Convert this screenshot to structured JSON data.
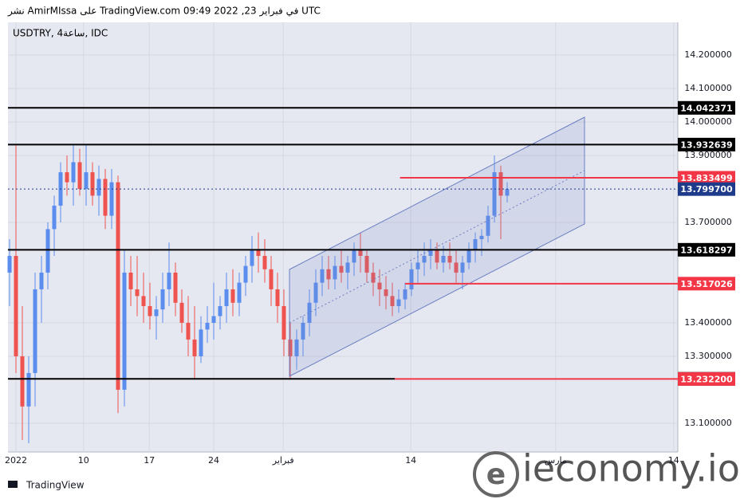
{
  "header": "نشر AmirMIssa على TradingView.com 09:49 2022 ,23 في فبراير UTC",
  "footer": "TradingView",
  "watermark": "ieconomy.io",
  "chart_data": {
    "type": "candlestick",
    "title": "USDTRY, 4ساعة, IDC",
    "up_color": "#5b8def",
    "down_color": "#ef5350",
    "xlim": [
      -0.25,
      104.75
    ],
    "ylim": [
      13.014,
      14.298
    ],
    "xticks": [
      {
        "value": 1,
        "label": "2022"
      },
      {
        "value": 11.6,
        "label": "10"
      },
      {
        "value": 21.9,
        "label": "17"
      },
      {
        "value": 32,
        "label": "24"
      },
      {
        "value": 42.9,
        "label": "فبراير"
      },
      {
        "value": 62.9,
        "label": "14"
      },
      {
        "value": 85.6,
        "label": "مارس"
      },
      {
        "value": 104.1,
        "label": "14"
      }
    ],
    "yticks": [
      {
        "value": 14.2,
        "label": "14.200000"
      },
      {
        "value": 14.1,
        "label": "14.100000"
      },
      {
        "value": 14.0,
        "label": "14.000000"
      },
      {
        "value": 13.9,
        "label": "13.900000"
      },
      {
        "value": 13.7,
        "label": "13.700000"
      },
      {
        "value": 13.4,
        "label": "13.400000"
      },
      {
        "value": 13.3,
        "label": "13.300000"
      },
      {
        "value": 13.1,
        "label": "13.100000"
      }
    ],
    "open": [
      13.55,
      13.6,
      13.3,
      13.15,
      13.25,
      13.5,
      13.55,
      13.68,
      13.75,
      13.85,
      13.82,
      13.88,
      13.8,
      13.85,
      13.78,
      13.83,
      13.72,
      13.82,
      13.2,
      13.55,
      13.5,
      13.48,
      13.45,
      13.42,
      13.44,
      13.5,
      13.55,
      13.46,
      13.4,
      13.35,
      13.3,
      13.38,
      13.4,
      13.42,
      13.45,
      13.5,
      13.46,
      13.52,
      13.57,
      13.62,
      13.6,
      13.56,
      13.5,
      13.45,
      13.35,
      13.3,
      13.35,
      13.4,
      13.46,
      13.52,
      13.56,
      13.53,
      13.57,
      13.55,
      13.58,
      13.62,
      13.6,
      13.55,
      13.52,
      13.5,
      13.48,
      13.45,
      13.47,
      13.5,
      13.56,
      13.58,
      13.6,
      13.62,
      13.58,
      13.6,
      13.58,
      13.55,
      13.58,
      13.62,
      13.65,
      13.66,
      13.72,
      13.85,
      13.78
    ],
    "high": [
      13.65,
      13.93,
      13.45,
      13.3,
      13.55,
      13.6,
      13.7,
      13.78,
      13.88,
      13.9,
      13.93,
      13.92,
      13.93,
      13.88,
      13.87,
      13.86,
      13.86,
      13.84,
      13.62,
      13.6,
      13.6,
      13.55,
      13.52,
      13.48,
      13.55,
      13.64,
      13.58,
      13.5,
      13.48,
      13.45,
      13.42,
      13.45,
      13.52,
      13.48,
      13.55,
      13.56,
      13.55,
      13.6,
      13.66,
      13.67,
      13.65,
      13.6,
      13.55,
      13.5,
      13.4,
      13.38,
      13.42,
      13.5,
      13.56,
      13.6,
      13.6,
      13.6,
      13.62,
      13.6,
      13.64,
      13.67,
      13.62,
      13.58,
      13.56,
      13.54,
      13.52,
      13.5,
      13.52,
      13.58,
      13.62,
      13.64,
      13.65,
      13.64,
      13.63,
      13.64,
      13.62,
      13.6,
      13.64,
      13.67,
      13.68,
      13.75,
      13.9,
      13.87,
      13.82
    ],
    "low": [
      13.45,
      13.25,
      13.05,
      13.04,
      13.15,
      13.4,
      13.5,
      13.6,
      13.7,
      13.78,
      13.75,
      13.78,
      13.75,
      13.75,
      13.72,
      13.68,
      13.68,
      13.13,
      13.15,
      13.45,
      13.42,
      13.4,
      13.38,
      13.35,
      13.4,
      13.45,
      13.42,
      13.37,
      13.3,
      13.23,
      13.28,
      13.34,
      13.35,
      13.38,
      13.4,
      13.42,
      13.42,
      13.48,
      13.52,
      13.55,
      13.52,
      13.45,
      13.4,
      13.3,
      13.23,
      13.26,
      13.3,
      13.36,
      13.42,
      13.48,
      13.5,
      13.5,
      13.52,
      13.5,
      13.54,
      13.55,
      13.52,
      13.48,
      13.45,
      13.44,
      13.42,
      13.43,
      13.44,
      13.48,
      13.52,
      13.54,
      13.56,
      13.56,
      13.55,
      13.56,
      13.52,
      13.5,
      13.56,
      13.58,
      13.6,
      13.64,
      13.7,
      13.65,
      13.76
    ],
    "close": [
      13.6,
      13.3,
      13.15,
      13.25,
      13.5,
      13.55,
      13.68,
      13.75,
      13.85,
      13.82,
      13.88,
      13.8,
      13.85,
      13.78,
      13.83,
      13.72,
      13.82,
      13.2,
      13.55,
      13.5,
      13.48,
      13.45,
      13.42,
      13.44,
      13.5,
      13.55,
      13.46,
      13.4,
      13.35,
      13.3,
      13.38,
      13.4,
      13.42,
      13.45,
      13.5,
      13.46,
      13.52,
      13.57,
      13.62,
      13.6,
      13.56,
      13.5,
      13.45,
      13.35,
      13.3,
      13.35,
      13.4,
      13.46,
      13.52,
      13.56,
      13.53,
      13.57,
      13.55,
      13.58,
      13.62,
      13.6,
      13.55,
      13.52,
      13.5,
      13.48,
      13.45,
      13.47,
      13.5,
      13.56,
      13.58,
      13.6,
      13.62,
      13.58,
      13.6,
      13.58,
      13.55,
      13.58,
      13.62,
      13.65,
      13.66,
      13.72,
      13.85,
      13.78,
      13.8
    ],
    "levels": [
      {
        "value": 14.042371,
        "color": "#000000"
      },
      {
        "value": 13.932639,
        "color": "#000000"
      },
      {
        "value": 13.833499,
        "color": "#f23645",
        "x_start": 61.2
      },
      {
        "value": 13.618297,
        "color": "#000000"
      },
      {
        "value": 13.517026,
        "color": "#f23645",
        "x_start": 62
      },
      {
        "value": 13.232648,
        "color": "#000000",
        "x_end": 60.4
      },
      {
        "value": 13.2322,
        "label": "13.232200",
        "color": "#f23645",
        "x_start": 60.4
      }
    ],
    "last_price": {
      "value": 13.7997,
      "label": "13.799700",
      "color": "#1e3a8a"
    }
  }
}
